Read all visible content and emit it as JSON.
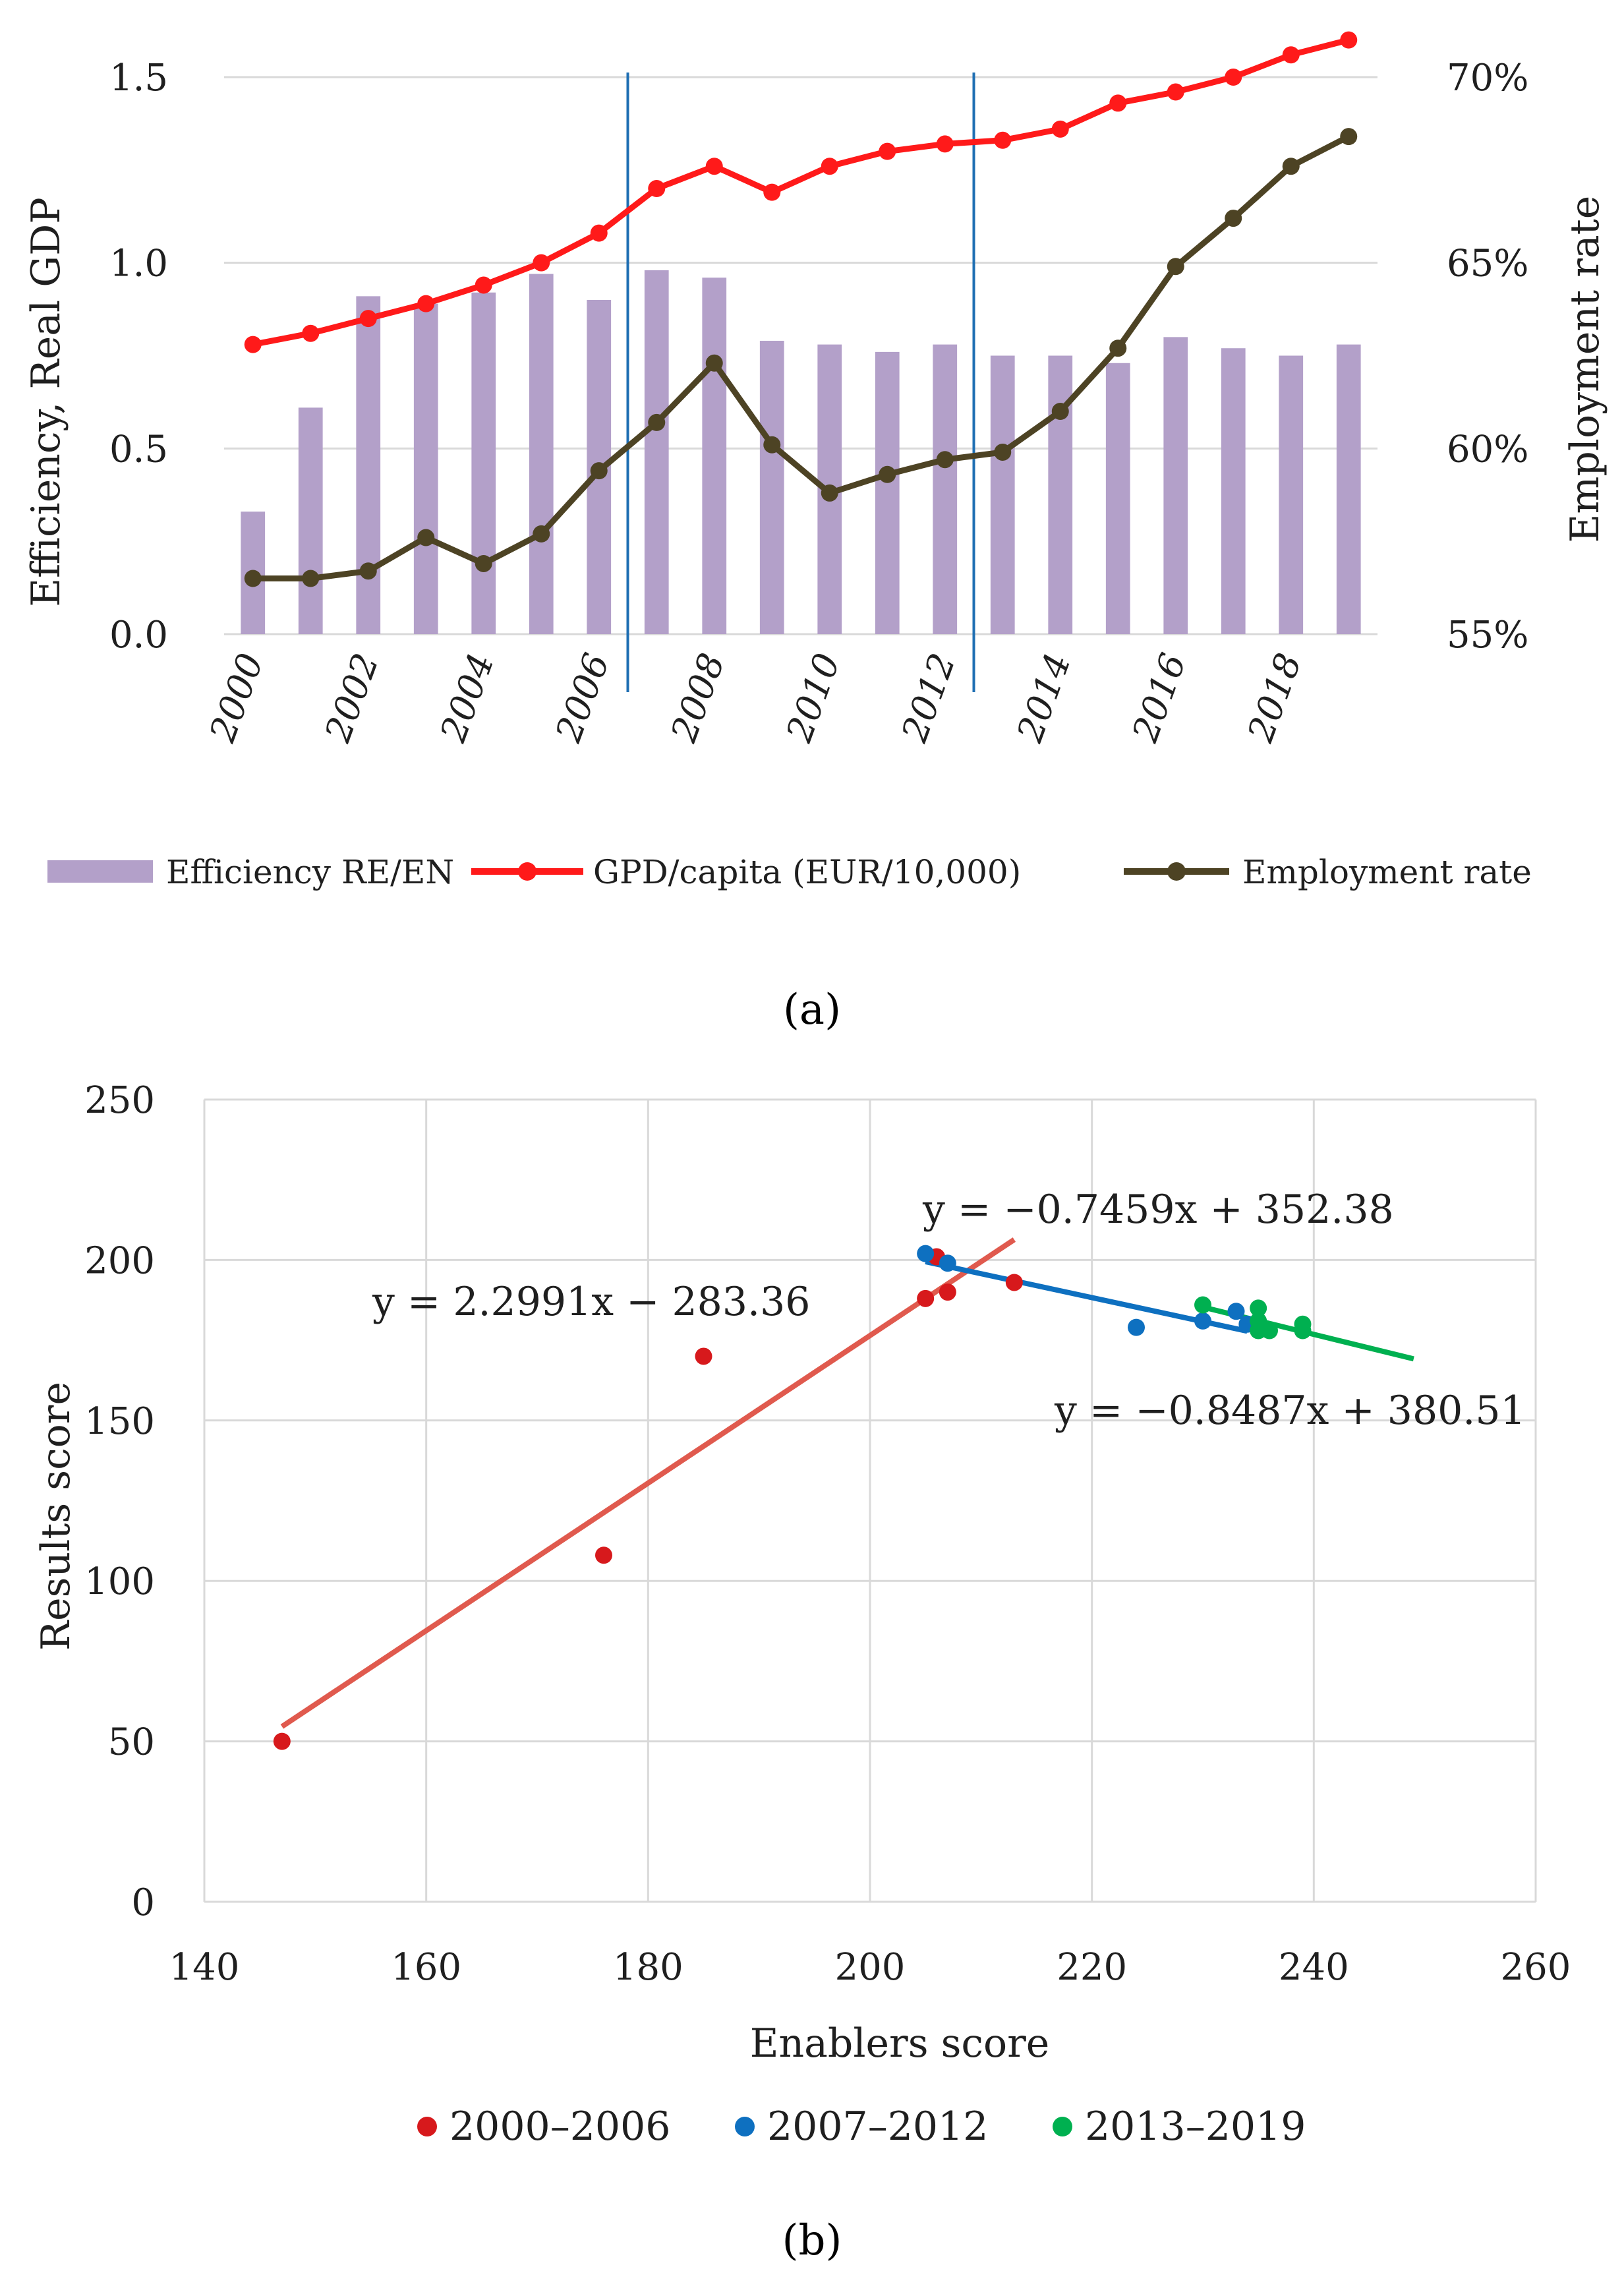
{
  "chart_data": [
    {
      "id": "a",
      "type": "bar+line",
      "title": "",
      "x": [
        "2000",
        "2001",
        "2002",
        "2003",
        "2004",
        "2005",
        "2006",
        "2007",
        "2008",
        "2009",
        "2010",
        "2011",
        "2012",
        "2013",
        "2014",
        "2015",
        "2016",
        "2017",
        "2018",
        "2019"
      ],
      "x_tick_labels": [
        "2000",
        "2002",
        "2004",
        "2006",
        "2008",
        "2010",
        "2012",
        "2014",
        "2016",
        "2018"
      ],
      "ylabel_left": "Efficiency, Real GDP",
      "ylabel_right": "Employment rate",
      "ylim_left": [
        0,
        1.5
      ],
      "yticks_left": [
        "0.0",
        "0.5",
        "1.0",
        "1.5"
      ],
      "ylim_right": [
        55,
        70
      ],
      "yticks_right": [
        "55%",
        "60%",
        "65%",
        "70%"
      ],
      "period_dividers": [
        2006.5,
        2012.5
      ],
      "series": [
        {
          "name": "Efficiency RE/EN",
          "kind": "bar",
          "axis": "left",
          "color": "#b3a0c9",
          "values": [
            0.33,
            0.61,
            0.91,
            0.89,
            0.92,
            0.97,
            0.9,
            0.98,
            0.96,
            0.79,
            0.78,
            0.76,
            0.78,
            0.75,
            0.75,
            0.73,
            0.8,
            0.77,
            0.75,
            0.78
          ]
        },
        {
          "name": "GPD/capita (EUR/10,000)",
          "kind": "line",
          "axis": "left",
          "color": "#ff1a1a",
          "values": [
            0.78,
            0.81,
            0.85,
            0.89,
            0.94,
            1.0,
            1.08,
            1.2,
            1.26,
            1.19,
            1.26,
            1.3,
            1.32,
            1.33,
            1.36,
            1.43,
            1.46,
            1.5,
            1.56,
            1.6
          ]
        },
        {
          "name": "Employment rate",
          "kind": "line",
          "axis": "right",
          "color": "#4d4324",
          "values": [
            56.5,
            56.5,
            56.7,
            57.6,
            56.9,
            57.7,
            59.4,
            60.7,
            62.3,
            60.1,
            58.8,
            59.3,
            59.7,
            59.9,
            61.0,
            62.7,
            64.9,
            66.2,
            67.6,
            68.4
          ]
        }
      ],
      "legend": [
        "Efficiency RE/EN",
        "GPD/capita (EUR/10,000)",
        "Employment rate"
      ],
      "legend_position": "bottom"
    },
    {
      "id": "b",
      "type": "scatter",
      "title": "",
      "xlabel": "Enablers score",
      "ylabel": "Results score",
      "xlim": [
        140,
        260
      ],
      "ylim": [
        0,
        250
      ],
      "xticks": [
        "140",
        "160",
        "180",
        "200",
        "220",
        "240",
        "260"
      ],
      "yticks": [
        "0",
        "50",
        "100",
        "150",
        "200",
        "250"
      ],
      "grid": true,
      "series": [
        {
          "name": "2000–2006",
          "color": "#d7191c",
          "points": [
            [
              147,
              50
            ],
            [
              176,
              108
            ],
            [
              185,
              170
            ],
            [
              205,
              188
            ],
            [
              206,
              201
            ],
            [
              207,
              190
            ],
            [
              213,
              193
            ]
          ],
          "trendline": {
            "equation": "y = 2.2991x − 283.36",
            "slope": 2.2991,
            "intercept": -283.36,
            "x_range": [
              147,
              213
            ],
            "color": "#e05a4e"
          }
        },
        {
          "name": "2007–2012",
          "color": "#0e70c0",
          "points": [
            [
              205,
              202
            ],
            [
              207,
              199
            ],
            [
              224,
              179
            ],
            [
              230,
              181
            ],
            [
              233,
              184
            ],
            [
              234,
              180
            ]
          ],
          "trendline": {
            "equation": "y = −0.7459x + 352.38",
            "slope": -0.7459,
            "intercept": 352.38,
            "x_range": [
              205,
              234
            ],
            "color": "#0e70c0"
          }
        },
        {
          "name": "2013–2019",
          "color": "#00b050",
          "points": [
            [
              230,
              186
            ],
            [
              235,
              185
            ],
            [
              235,
              181
            ],
            [
              235,
              178
            ],
            [
              236,
              178
            ],
            [
              239,
              180
            ],
            [
              239,
              178
            ]
          ],
          "trendline": {
            "equation": "y = −0.8487x + 380.51",
            "slope": -0.8487,
            "intercept": 380.51,
            "x_range": [
              230,
              249
            ],
            "color": "#00b050"
          }
        }
      ],
      "legend": [
        "2000–2006",
        "2007–2012",
        "2013–2019"
      ],
      "legend_position": "bottom"
    }
  ],
  "captions": {
    "a": "(a)",
    "b": "(b)"
  }
}
